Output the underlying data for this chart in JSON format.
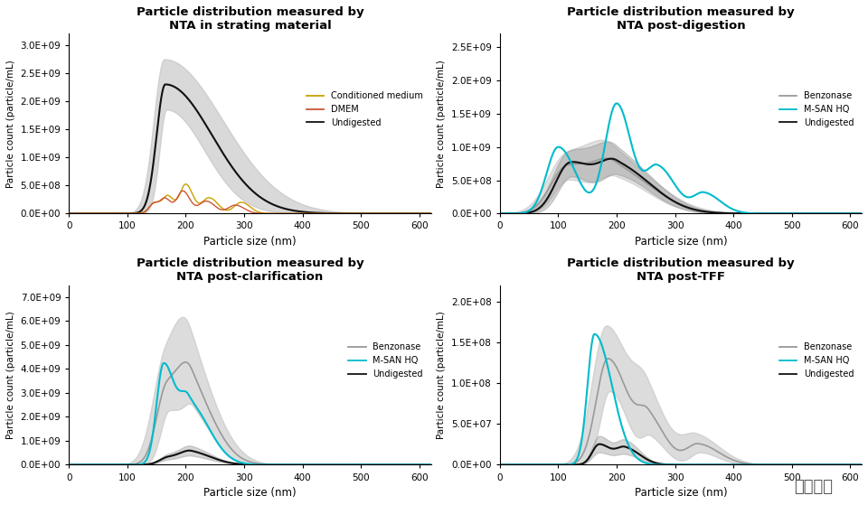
{
  "titles": [
    [
      "Particle distribution measured by",
      "NTA in strating material"
    ],
    [
      "Particle distribution measured by",
      "NTA post-digestion"
    ],
    [
      "Particle distribution measured by",
      "NTA post-clarification"
    ],
    [
      "Particle distribution measured by",
      "NTA post-TFF"
    ]
  ],
  "xlabel": "Particle size (nm)",
  "ylabel": "Particle count (particle/mL)",
  "colors": {
    "conditioned_medium": "#C8A000",
    "dmem": "#CC5533",
    "undigested_p1": "#111111",
    "benzonase": "#999999",
    "msan": "#00BBCC",
    "undigested_dark": "#111111",
    "gray_fill": "#bbbbbb",
    "dark_fill": "#888888"
  },
  "bg_color": "#ffffff",
  "watermark": "倍笼生物"
}
